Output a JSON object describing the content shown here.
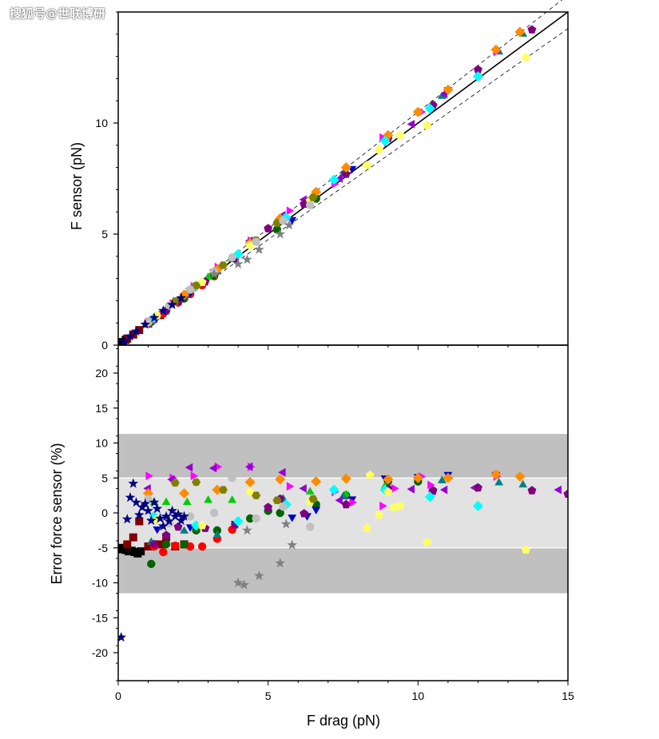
{
  "watermark": "搜狐号@世联博研",
  "chart_data": [
    {
      "type": "scatter",
      "xlabel": "",
      "ylabel": "F sensor (pN)",
      "xlim": [
        0,
        15
      ],
      "ylim": [
        0,
        15
      ],
      "yticks": [
        0,
        5,
        10
      ],
      "xticks": [
        0,
        5,
        10,
        15
      ],
      "ideal_line": {
        "x": [
          0,
          15
        ],
        "y": [
          0,
          15
        ]
      },
      "bound_lines": [
        {
          "x": [
            0,
            15
          ],
          "y": [
            0,
            14.25
          ]
        },
        {
          "x": [
            0,
            15
          ],
          "y": [
            0,
            15.75
          ]
        }
      ],
      "series": [
        {
          "color": "#000000",
          "marker": "square",
          "x": [
            0.05,
            0.15,
            0.25
          ],
          "y": [
            0.05,
            0.14,
            0.24
          ]
        },
        {
          "color": "#800000",
          "marker": "square",
          "x": [
            0.3,
            0.5,
            0.7,
            1.0,
            1.4
          ],
          "y": [
            0.3,
            0.48,
            0.68,
            0.97,
            1.35
          ]
        },
        {
          "color": "#ff0000",
          "marker": "circle",
          "x": [
            1.5,
            2.0,
            2.4,
            2.8,
            3.2
          ],
          "y": [
            1.42,
            1.92,
            2.3,
            2.7,
            3.1
          ]
        },
        {
          "color": "#006400",
          "marker": "circle",
          "x": [
            1.1,
            1.6,
            2.2,
            3.2,
            5.3,
            6.6
          ],
          "y": [
            1.05,
            1.55,
            2.1,
            3.15,
            5.2,
            6.6
          ]
        },
        {
          "color": "#00cc00",
          "marker": "triangle-up",
          "x": [
            1.2,
            1.6,
            2.3,
            3.0,
            3.8
          ],
          "y": [
            1.22,
            1.62,
            2.34,
            3.05,
            3.86
          ]
        },
        {
          "color": "#008080",
          "marker": "triangle-up",
          "x": [
            1.1,
            2.2,
            3.3,
            5.5,
            7.5,
            10.8,
            12.7,
            13.5
          ],
          "y": [
            1.06,
            2.17,
            3.3,
            5.6,
            7.7,
            11.2,
            13.2,
            14.0
          ]
        },
        {
          "color": "#0000cd",
          "marker": "triangle-down",
          "x": [
            1.3,
            2.4,
            3.9,
            5.8,
            7.8,
            8.9,
            10.5,
            11.0
          ],
          "y": [
            1.27,
            2.36,
            3.85,
            5.65,
            7.95,
            9.15,
            10.7,
            11.5
          ]
        },
        {
          "color": "#ff00ff",
          "marker": "triangle-right",
          "x": [
            1.0,
            1.8,
            2.5,
            3.3,
            4.4,
            5.7,
            7.2,
            8.8,
            10.1,
            12.6
          ],
          "y": [
            1.05,
            1.88,
            2.65,
            3.52,
            4.7,
            6.05,
            7.25,
            9.35,
            10.5,
            13.2
          ]
        },
        {
          "color": "#9400d3",
          "marker": "triangle-left",
          "x": [
            1.0,
            1.8,
            2.4,
            3.2,
            4.4,
            5.5,
            6.2,
            7.4,
            9.8,
            10.5,
            10.9
          ],
          "y": [
            1.05,
            1.85,
            2.55,
            3.38,
            4.7,
            5.85,
            6.55,
            7.5,
            9.95,
            10.8,
            11.3
          ]
        },
        {
          "color": "#800080",
          "marker": "pentagon",
          "x": [
            1.2,
            1.6,
            2.0,
            2.9,
            3.9,
            5.0,
            6.2,
            7.6,
            9.0,
            10.5,
            12.0,
            13.8
          ],
          "y": [
            1.16,
            1.55,
            1.98,
            2.85,
            3.9,
            5.25,
            6.35,
            7.7,
            9.3,
            10.8,
            12.4,
            14.2
          ]
        },
        {
          "color": "#ff8c00",
          "marker": "diamond",
          "x": [
            1.0,
            2.2,
            3.3,
            4.4,
            5.4,
            6.6,
            7.6,
            9.0,
            10.0,
            11.0,
            12.6,
            13.4
          ],
          "y": [
            1.03,
            2.27,
            3.4,
            4.6,
            5.7,
            6.9,
            8.0,
            9.45,
            10.5,
            11.5,
            13.3,
            14.1
          ]
        },
        {
          "color": "#00ffff",
          "marker": "diamond",
          "x": [
            1.2,
            2.6,
            4.0,
            5.6,
            7.2,
            8.9,
            10.4,
            12.0
          ],
          "y": [
            1.23,
            2.67,
            4.1,
            5.75,
            7.45,
            9.2,
            10.65,
            12.1
          ]
        },
        {
          "color": "#ffff66",
          "marker": "pentagon",
          "x": [
            1.3,
            2.8,
            4.4,
            6.4,
            8.3,
            8.7,
            9.4,
            10.3,
            13.6
          ],
          "y": [
            1.35,
            2.83,
            4.5,
            6.5,
            8.1,
            8.8,
            9.45,
            9.9,
            12.95
          ]
        },
        {
          "color": "#808000",
          "marker": "hexagon",
          "x": [
            1.9,
            2.6,
            3.5,
            4.6,
            5.3,
            6.5
          ],
          "y": [
            1.98,
            2.68,
            3.6,
            4.72,
            5.5,
            6.65
          ]
        },
        {
          "color": "#c0c0c0",
          "marker": "circle",
          "x": [
            1.0,
            1.7,
            2.4,
            3.2,
            3.8,
            4.6,
            5.5,
            6.4
          ],
          "y": [
            1.02,
            1.78,
            2.5,
            3.3,
            3.95,
            4.65,
            5.6,
            6.3
          ]
        },
        {
          "color": "#000080",
          "marker": "star",
          "x": [
            0.2,
            0.4,
            0.6,
            0.9,
            1.2,
            1.5,
            1.8,
            2.1
          ],
          "y": [
            0.18,
            0.4,
            0.62,
            0.93,
            1.23,
            1.55,
            1.82,
            2.12
          ]
        },
        {
          "color": "#808080",
          "marker": "star",
          "x": [
            3.2,
            4.0,
            4.3,
            4.7,
            5.4,
            5.7
          ],
          "y": [
            3.2,
            3.65,
            3.85,
            4.3,
            5.0,
            5.4
          ]
        }
      ]
    },
    {
      "type": "scatter",
      "xlabel": "F drag (pN)",
      "ylabel": "Error force sensor (%)",
      "xlim": [
        0,
        15
      ],
      "ylim": [
        -24,
        24
      ],
      "yticks": [
        -20,
        -15,
        -10,
        -5,
        0,
        5,
        10,
        15,
        20
      ],
      "xticks": [
        0,
        5,
        10,
        15
      ],
      "bands": [
        {
          "from": -11.5,
          "to": 11.3,
          "color": "#c0c0c0"
        },
        {
          "from": -5,
          "to": 5,
          "color": "#e2e2e2"
        }
      ],
      "series": [
        {
          "color": "#000000",
          "marker": "square",
          "x": [
            0.05,
            0.15,
            0.25,
            0.35,
            0.45,
            0.55,
            0.65,
            0.75
          ],
          "y": [
            -5.2,
            -5.0,
            -5.3,
            -5.5,
            -5.4,
            -5.6,
            -5.8,
            -5.5
          ]
        },
        {
          "color": "#800000",
          "marker": "square",
          "x": [
            0.3,
            0.5,
            0.7,
            1.0,
            1.2,
            1.4,
            1.6,
            1.9,
            2.2
          ],
          "y": [
            -4.5,
            -3.5,
            -1.2,
            -4.8,
            -4.5,
            -4.5,
            -3.5,
            -4.8,
            -4.5
          ]
        },
        {
          "color": "#ff0000",
          "marker": "circle",
          "x": [
            1.2,
            1.5,
            1.9,
            2.4,
            2.8,
            3.3,
            3.8
          ],
          "y": [
            -4.8,
            -5.6,
            -4.7,
            -4.8,
            -4.8,
            -3.7,
            -2.4
          ]
        },
        {
          "color": "#006400",
          "marker": "circle",
          "x": [
            1.1,
            1.6,
            2.2,
            2.6,
            3.3,
            4.4,
            5.0,
            5.4,
            6.6,
            7.6,
            9.0,
            10.0
          ],
          "y": [
            -7.3,
            -4.5,
            -4.5,
            -2.5,
            -2.5,
            -0.8,
            0.3,
            0.0,
            1.2,
            2.5,
            4.5,
            4.5
          ]
        },
        {
          "color": "#00cc00",
          "marker": "triangle-up",
          "x": [
            1.2,
            1.6,
            2.3,
            3.0,
            3.8,
            6.4,
            7.6,
            8.9
          ],
          "y": [
            1.5,
            1.5,
            1.5,
            1.8,
            1.8,
            3.0,
            2.6,
            3.8
          ]
        },
        {
          "color": "#008080",
          "marker": "triangle-up",
          "x": [
            1.1,
            2.2,
            3.3,
            5.5,
            7.5,
            10.8,
            12.7,
            13.5
          ],
          "y": [
            -4.2,
            -2.6,
            -3.2,
            2.0,
            2.3,
            4.6,
            4.3,
            4.0
          ]
        },
        {
          "color": "#0000cd",
          "marker": "triangle-down",
          "x": [
            1.3,
            2.4,
            3.9,
            5.8,
            6.3,
            6.6,
            7.8,
            8.9,
            10.0,
            11.0,
            12.6
          ],
          "y": [
            -2.3,
            -2.0,
            -1.5,
            -0.6,
            -0.4,
            0.5,
            2.0,
            5.0,
            5.2,
            5.5,
            5.5
          ]
        },
        {
          "color": "#ff00ff",
          "marker": "triangle-right",
          "x": [
            1.0,
            1.8,
            2.5,
            3.3,
            4.4,
            5.7,
            7.2,
            7.8,
            8.8,
            9.2,
            10.1,
            10.4,
            12.6
          ],
          "y": [
            5.3,
            5.0,
            5.3,
            6.6,
            6.6,
            3.8,
            3.0,
            1.5,
            1.0,
            3.5,
            5.2,
            4.0,
            5.2
          ]
        },
        {
          "color": "#9400d3",
          "marker": "triangle-left",
          "x": [
            1.0,
            1.8,
            2.4,
            3.2,
            4.4,
            5.5,
            6.2,
            7.4,
            9.8,
            10.5,
            10.9,
            11.9,
            14.7
          ],
          "y": [
            3.5,
            4.8,
            6.5,
            6.4,
            6.6,
            5.8,
            3.5,
            1.8,
            3.4,
            3.1,
            3.3,
            3.6,
            3.3
          ]
        },
        {
          "color": "#800080",
          "marker": "pentagon",
          "x": [
            1.2,
            1.6,
            2.0,
            2.9,
            3.9,
            5.0,
            5.4,
            6.2,
            7.6,
            9.0,
            10.5,
            12.0,
            13.8,
            15.0
          ],
          "y": [
            -4.5,
            -3.2,
            -2.0,
            -2.2,
            -1.7,
            0.8,
            2.0,
            -0.1,
            1.2,
            3.5,
            3.2,
            3.6,
            3.2,
            2.7
          ]
        },
        {
          "color": "#ff8c00",
          "marker": "diamond",
          "x": [
            1.0,
            2.2,
            3.3,
            4.4,
            5.4,
            6.6,
            7.6,
            9.0,
            10.0,
            11.0,
            12.6,
            13.4
          ],
          "y": [
            2.8,
            2.8,
            3.3,
            4.4,
            4.8,
            4.5,
            4.9,
            4.8,
            5.0,
            5.0,
            5.5,
            5.2
          ]
        },
        {
          "color": "#00ffff",
          "marker": "diamond",
          "x": [
            1.2,
            2.6,
            4.0,
            5.6,
            7.2,
            8.9,
            10.4,
            12.0
          ],
          "y": [
            -0.5,
            -1.8,
            -1.2,
            1.2,
            3.3,
            3.3,
            2.3,
            1.0
          ]
        },
        {
          "color": "#ffff66",
          "marker": "pentagon",
          "x": [
            1.3,
            2.8,
            4.4,
            6.4,
            8.3,
            8.4,
            8.7,
            9.0,
            9.2,
            9.4,
            10.3,
            13.6
          ],
          "y": [
            -0.9,
            -1.8,
            3.0,
            1.6,
            -2.2,
            5.4,
            -0.3,
            3.0,
            0.8,
            1.0,
            -4.2,
            -5.3
          ]
        },
        {
          "color": "#808000",
          "marker": "hexagon",
          "x": [
            1.9,
            2.6,
            3.5,
            4.6,
            5.3,
            6.5
          ],
          "y": [
            4.3,
            4.4,
            3.3,
            2.5,
            1.8,
            2.0
          ]
        },
        {
          "color": "#c0c0c0",
          "marker": "circle",
          "x": [
            1.0,
            1.7,
            2.4,
            3.2,
            3.8,
            4.6,
            5.5,
            6.4
          ],
          "y": [
            2.0,
            -1.5,
            -0.5,
            0.0,
            5.0,
            -0.8,
            0.9,
            -2.0
          ]
        },
        {
          "color": "#000080",
          "marker": "star",
          "x": [
            0.1,
            0.3,
            0.4,
            0.5,
            0.6,
            0.7,
            0.8,
            0.9,
            1.0,
            1.1,
            1.2,
            1.3,
            1.4,
            1.5,
            1.6,
            1.7,
            1.8,
            1.9,
            2.0,
            2.1,
            2.2
          ],
          "y": [
            -17.8,
            -0.9,
            2.2,
            4.2,
            1.5,
            -0.3,
            0.8,
            1.3,
            0.3,
            -1.1,
            1.5,
            0.6,
            -0.8,
            -1.9,
            -0.5,
            -1.2,
            0.3,
            -0.5,
            -0.2,
            -1.1,
            -0.5
          ]
        },
        {
          "color": "#808080",
          "marker": "star",
          "x": [
            4.0,
            4.2,
            4.3,
            4.7,
            5.4,
            5.6,
            5.8
          ],
          "y": [
            -10.0,
            -10.3,
            -2.5,
            -9.0,
            -7.2,
            -1.6,
            -4.6
          ]
        }
      ]
    }
  ]
}
